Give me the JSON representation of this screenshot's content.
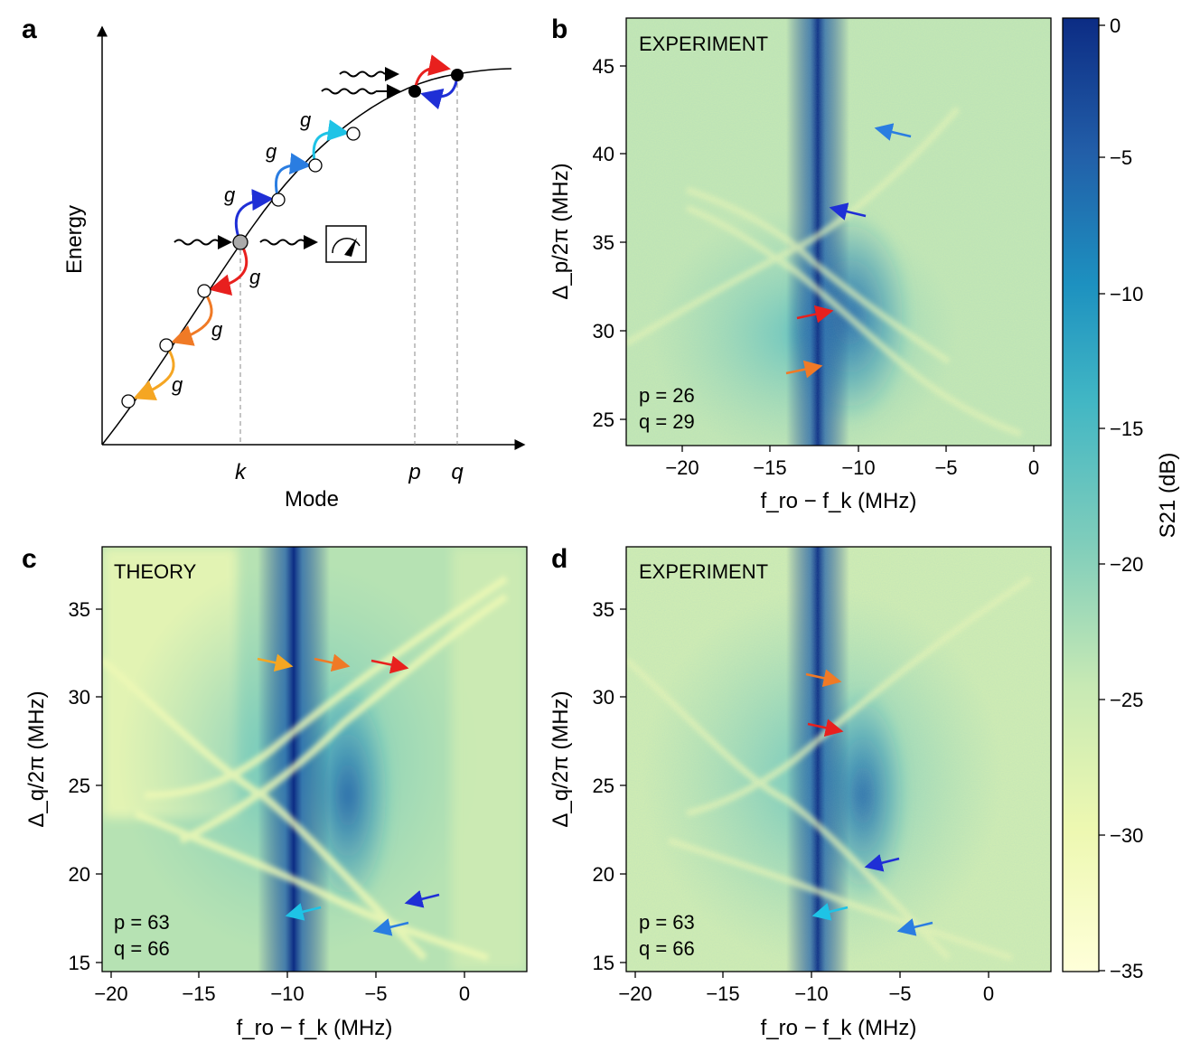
{
  "panels": {
    "a": {
      "letter": "a",
      "xlabel": "Mode",
      "ylabel": "Energy",
      "ticks": [
        "k",
        "p",
        "q"
      ],
      "coupling": "g"
    },
    "b": {
      "letter": "b",
      "tag": "EXPERIMENT",
      "xlabel": "f_ro − f_k (MHz)",
      "ylabel": "Δ_p/2π (MHz)",
      "xticks": [
        "−20",
        "−15",
        "−10",
        "−5",
        "0"
      ],
      "yticks": [
        "25",
        "30",
        "35",
        "40",
        "45"
      ],
      "p_label": "p = 26",
      "q_label": "q = 29"
    },
    "c": {
      "letter": "c",
      "tag": "THEORY",
      "xlabel": "f_ro − f_k (MHz)",
      "ylabel": "Δ_q/2π (MHz)",
      "xticks": [
        "−20",
        "−15",
        "−10",
        "−5",
        "0"
      ],
      "yticks": [
        "15",
        "20",
        "25",
        "30",
        "35"
      ],
      "p_label": "p = 63",
      "q_label": "q = 66"
    },
    "d": {
      "letter": "d",
      "tag": "EXPERIMENT",
      "xlabel": "f_ro − f_k (MHz)",
      "ylabel": "Δ_q/2π (MHz)",
      "xticks": [
        "−20",
        "−15",
        "−10",
        "−5",
        "0"
      ],
      "yticks": [
        "15",
        "20",
        "25",
        "30",
        "35"
      ],
      "p_label": "p = 63",
      "q_label": "q = 66"
    }
  },
  "colorbar": {
    "label": "S21 (dB)",
    "ticks": [
      "0",
      "−5",
      "−10",
      "−15",
      "−20",
      "−25",
      "−30",
      "−35"
    ],
    "range": [
      -35,
      0
    ],
    "colors": [
      "#ffffd9",
      "#edf8b1",
      "#c7e9b4",
      "#7fcdbb",
      "#41b6c4",
      "#1d91c0",
      "#225ea8",
      "#0c2c84"
    ]
  },
  "arrow_colors": {
    "yellow": "#f5a623",
    "orange": "#f07a26",
    "red": "#e8201e",
    "blue": "#1f2fd6",
    "mid_blue": "#2a7de1",
    "cyan": "#1ec3e6"
  },
  "chart_data": [
    {
      "type": "heatmap",
      "panel": "b",
      "title": "EXPERIMENT",
      "xlabel": "f_ro − f_k (MHz)",
      "ylabel": "Δ_p/2π (MHz)",
      "xlim": [
        -23,
        1
      ],
      "ylim": [
        23.5,
        47.5
      ],
      "colorbar_range_dB": [
        -35,
        0
      ],
      "annotations": [
        "p = 26",
        "q = 29"
      ]
    },
    {
      "type": "heatmap",
      "panel": "c",
      "title": "THEORY",
      "xlabel": "f_ro − f_k (MHz)",
      "ylabel": "Δ_q/2π (MHz)",
      "xlim": [
        -20.5,
        3.5
      ],
      "ylim": [
        14.5,
        38.5
      ],
      "colorbar_range_dB": [
        -35,
        0
      ],
      "annotations": [
        "p = 63",
        "q = 66"
      ]
    },
    {
      "type": "heatmap",
      "panel": "d",
      "title": "EXPERIMENT",
      "xlabel": "f_ro − f_k (MHz)",
      "ylabel": "Δ_q/2π (MHz)",
      "xlim": [
        -20.5,
        3.5
      ],
      "ylim": [
        14.5,
        38.5
      ],
      "colorbar_range_dB": [
        -35,
        0
      ],
      "annotations": [
        "p = 63",
        "q = 66"
      ]
    }
  ]
}
